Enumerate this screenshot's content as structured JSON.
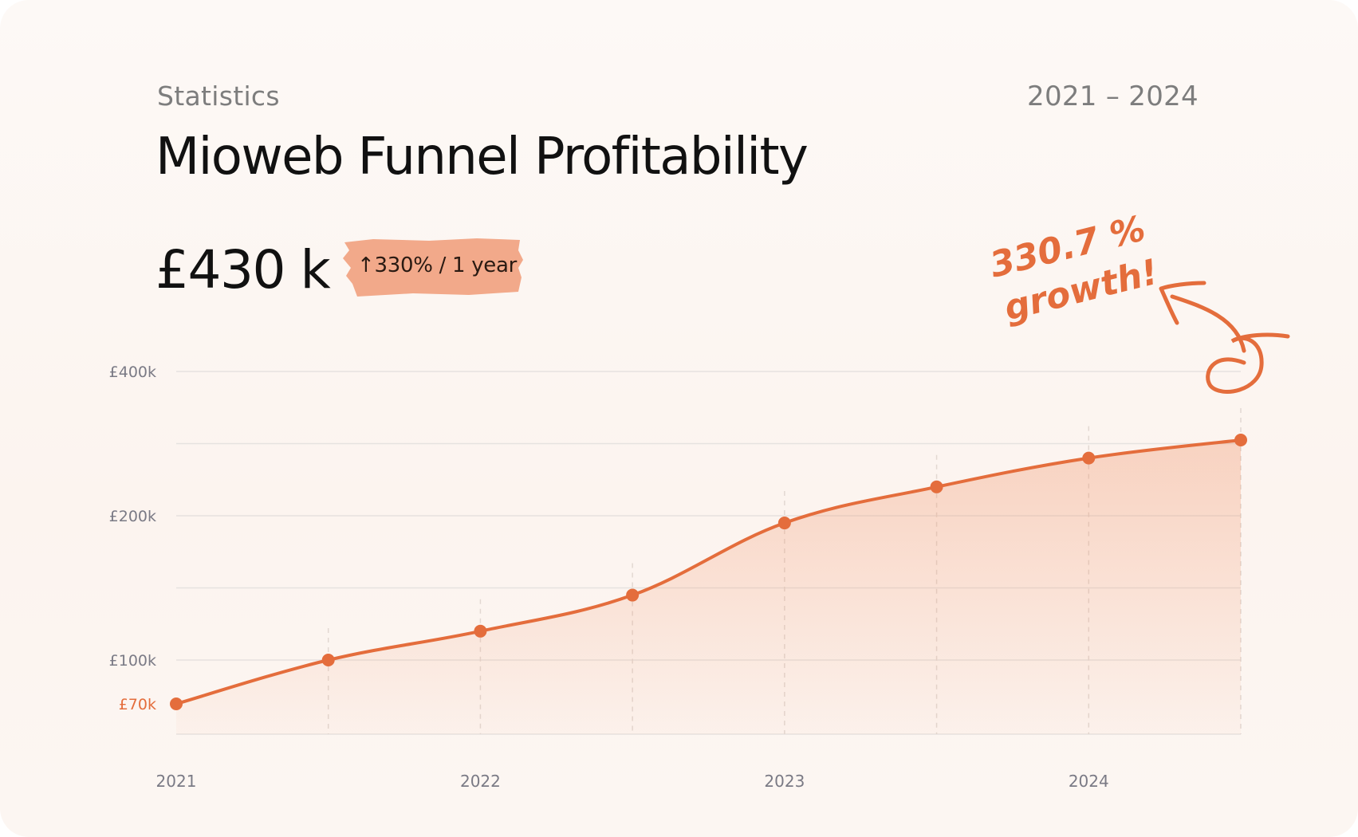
{
  "header": {
    "eyebrow": "Statistics",
    "date_range": "2021 – 2024",
    "title": "Mioweb Funnel Profitability"
  },
  "kpi": {
    "value": "£430 k",
    "change_badge": "↑330% / 1 year",
    "badge_color": "#f2a98a"
  },
  "annotation": {
    "line1": "330.7 %",
    "line2": "growth!",
    "arrow_icon": "curved-arrow-icon"
  },
  "colors": {
    "accent": "#e46d3c",
    "text": "#111111",
    "muted": "#7d7d7d",
    "grid": "#e6e2df"
  },
  "chart_data": {
    "type": "area",
    "x": [
      2021,
      2021.5,
      2022,
      2022.5,
      2023,
      2023.5,
      2024,
      2024.5
    ],
    "x_tick_labels": [
      "2021",
      "2022",
      "2023",
      "2024"
    ],
    "x_tick_values": [
      2021,
      2022,
      2023,
      2024
    ],
    "y_tick_labels": [
      "£400k",
      "£200k",
      "£100k",
      "£70k"
    ],
    "y_tick_values": [
      400,
      200,
      100,
      70
    ],
    "highlighted_y_tick": "£70k",
    "series": [
      {
        "values": [
          70,
          100,
          120,
          145,
          195,
          240,
          280,
          305
        ]
      }
    ],
    "y_unit": "£k",
    "ylim": [
      50,
      400
    ],
    "xlim": [
      2021,
      2024.5
    ],
    "grid": true
  }
}
